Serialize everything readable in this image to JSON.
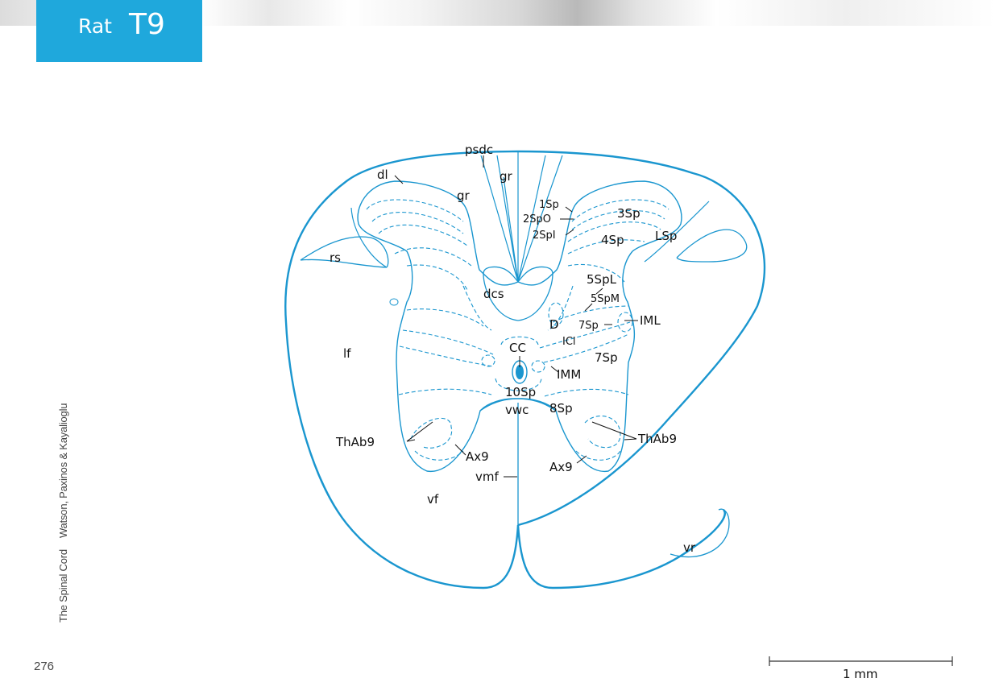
{
  "header": {
    "species": "Rat",
    "level": "T9"
  },
  "side": {
    "book": "The Spinal Cord",
    "authors": "Watson, Paxinos & Kayalioglu"
  },
  "page_number": "276",
  "scale_bar": {
    "label": "1 mm"
  },
  "colors": {
    "accent": "#1fa8dc",
    "outline": "#1a96cf"
  },
  "labels": {
    "psdc": "psdc",
    "dl": "dl",
    "gr_left": "gr",
    "gr_right": "gr",
    "sp1": "1Sp",
    "sp2o": "2SpO",
    "sp2i": "2SpI",
    "sp3": "3Sp",
    "sp4": "4Sp",
    "lsp": "LSp",
    "rs": "rs",
    "dcs": "dcs",
    "sp5l": "5SpL",
    "sp5m": "5SpM",
    "d": "D",
    "sp7_upper": "7Sp",
    "iml": "IML",
    "icl": "ICl",
    "cc": "CC",
    "sp7_lower": "7Sp",
    "imm": "IMM",
    "lf": "lf",
    "sp10": "10Sp",
    "vwc": "vwc",
    "sp8": "8Sp",
    "thab9_left": "ThAb9",
    "thab9_right": "ThAb9",
    "ax9_left": "Ax9",
    "ax9_right": "Ax9",
    "vmf": "vmf",
    "vf": "vf",
    "vr": "vr"
  }
}
